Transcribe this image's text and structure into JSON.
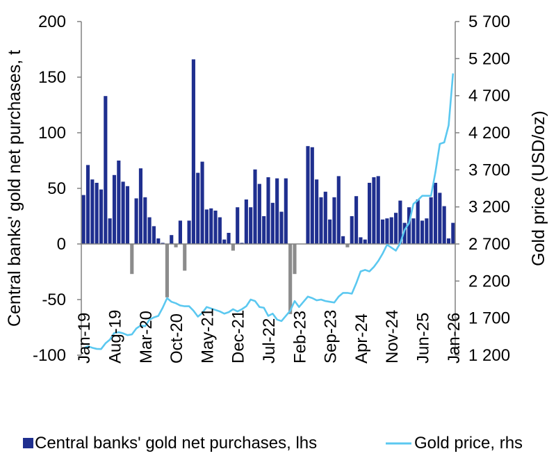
{
  "chart_data": {
    "type": "bar+line",
    "categories": [
      "Jan-19",
      "Feb-19",
      "Mar-19",
      "Apr-19",
      "May-19",
      "Jun-19",
      "Jul-19",
      "Aug-19",
      "Sep-19",
      "Oct-19",
      "Nov-19",
      "Dec-19",
      "Jan-20",
      "Feb-20",
      "Mar-20",
      "Apr-20",
      "May-20",
      "Jun-20",
      "Jul-20",
      "Aug-20",
      "Sep-20",
      "Oct-20",
      "Nov-20",
      "Dec-20",
      "Jan-21",
      "Feb-21",
      "Mar-21",
      "Apr-21",
      "May-21",
      "Jun-21",
      "Jul-21",
      "Aug-21",
      "Sep-21",
      "Oct-21",
      "Nov-21",
      "Dec-21",
      "Jan-22",
      "Feb-22",
      "Mar-22",
      "Apr-22",
      "May-22",
      "Jun-22",
      "Jul-22",
      "Aug-22",
      "Sep-22",
      "Oct-22",
      "Nov-22",
      "Dec-22",
      "Jan-23",
      "Feb-23",
      "Mar-23",
      "Apr-23",
      "May-23",
      "Jun-23",
      "Jul-23",
      "Aug-23",
      "Sep-23",
      "Oct-23",
      "Nov-23",
      "Dec-23",
      "Jan-24",
      "Feb-24",
      "Mar-24",
      "Apr-24",
      "May-24",
      "Jun-24",
      "Jul-24",
      "Aug-24",
      "Sep-24",
      "Oct-24",
      "Nov-24",
      "Dec-24",
      "Jan-25",
      "Feb-25",
      "Mar-25",
      "Apr-25",
      "May-25",
      "Jun-25",
      "Jul-25",
      "Aug-25",
      "Sep-25",
      "Oct-25",
      "Nov-25",
      "Dec-25",
      "Jan-26"
    ],
    "x_tick_labels": [
      "Jan-19",
      "Aug-19",
      "Mar-20",
      "Oct-20",
      "May-21",
      "Dec-21",
      "Jul-22",
      "Feb-23",
      "Sep-23",
      "Apr-24",
      "Nov-24",
      "Jun-25",
      "Jan-26"
    ],
    "series": [
      {
        "name": "Central banks' gold net purchases, lhs",
        "kind": "bar",
        "axis": "left",
        "color": "#1f2f8f",
        "negative_color": "#8c8c8c",
        "values": [
          44,
          71,
          58,
          55,
          49,
          133,
          23,
          62,
          75,
          56,
          52,
          -27,
          41,
          68,
          42,
          24,
          16,
          5,
          1,
          -48,
          8,
          -3,
          21,
          -24,
          21,
          166,
          64,
          74,
          31,
          32,
          30,
          24,
          4,
          10,
          -6,
          33,
          1,
          40,
          33,
          67,
          54,
          25,
          60,
          37,
          59,
          29,
          59,
          -63,
          -27,
          0,
          0,
          88,
          87,
          58,
          42,
          47,
          22,
          42,
          61,
          7,
          -3,
          25,
          43,
          6,
          4,
          55,
          60,
          61,
          22,
          23,
          24,
          28,
          39,
          19,
          33,
          23,
          40,
          21,
          23,
          42,
          55,
          46,
          34,
          5,
          19
        ]
      },
      {
        "name": "Gold price, rhs",
        "kind": "line",
        "axis": "right",
        "color": "#5bc8f0",
        "values": [
          1292,
          1320,
          1300,
          1285,
          1283,
          1360,
          1410,
          1500,
          1510,
          1495,
          1470,
          1480,
          1560,
          1600,
          1590,
          1680,
          1710,
          1730,
          1840,
          1970,
          1920,
          1900,
          1870,
          1860,
          1860,
          1800,
          1720,
          1770,
          1850,
          1830,
          1810,
          1790,
          1760,
          1780,
          1820,
          1790,
          1820,
          1860,
          1950,
          1930,
          1850,
          1840,
          1730,
          1760,
          1680,
          1660,
          1730,
          1800,
          1930,
          1850,
          1920,
          1990,
          1970,
          1940,
          1950,
          1930,
          1920,
          1910,
          1990,
          2040,
          2040,
          2030,
          2170,
          2330,
          2350,
          2330,
          2390,
          2470,
          2570,
          2690,
          2650,
          2610,
          2710,
          2890,
          2980,
          3240,
          3290,
          3350,
          3350,
          3350,
          3670,
          4050,
          4070,
          4300,
          5000
        ]
      }
    ],
    "y_left": {
      "label": "Central banks' gold net purchases, t",
      "min": -100,
      "max": 200,
      "ticks": [
        "-100",
        "-50",
        "0",
        "50",
        "100",
        "150",
        "200"
      ]
    },
    "y_right": {
      "label": "Gold price (USD/oz)",
      "min": 1200,
      "max": 5700,
      "ticks": [
        "1 200",
        "1 700",
        "2 200",
        "2 700",
        "3 200",
        "3 700",
        "4 200",
        "4 700",
        "5 200",
        "5 700"
      ]
    },
    "grid": false,
    "legend_position": "bottom"
  },
  "legend": {
    "bars_label": "Central banks' gold net purchases, lhs",
    "line_label": "Gold price, rhs"
  },
  "colors": {
    "bars_positive": "#1f2f8f",
    "bars_negative": "#8c8c8c",
    "line": "#5bc8f0",
    "axis": "#808080"
  }
}
